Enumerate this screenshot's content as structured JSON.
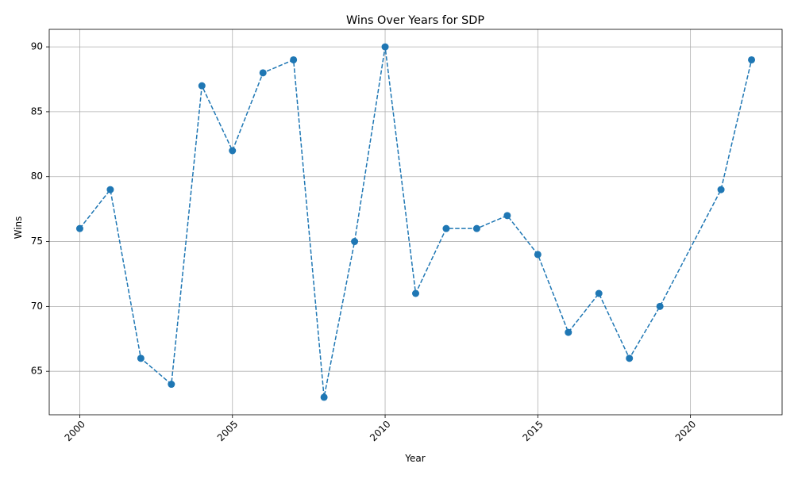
{
  "chart_data": {
    "type": "line",
    "title": "Wins Over Years for SDP",
    "xlabel": "Year",
    "ylabel": "Wins",
    "xlim": [
      1999,
      2023
    ],
    "ylim": [
      61.65,
      91.35
    ],
    "x_ticks": [
      2000,
      2005,
      2010,
      2015,
      2020
    ],
    "y_ticks": [
      65,
      70,
      75,
      80,
      85,
      90
    ],
    "x_tick_labels": [
      "2000",
      "2005",
      "2010",
      "2015",
      "2020"
    ],
    "y_tick_labels": [
      "65",
      "70",
      "75",
      "80",
      "85",
      "90"
    ],
    "x_tick_rotation": 45,
    "grid": true,
    "series": [
      {
        "color": "#1f77b4",
        "line_style": "dashed",
        "marker": "circle",
        "x": [
          2000,
          2001,
          2002,
          2003,
          2004,
          2005,
          2006,
          2007,
          2008,
          2009,
          2010,
          2011,
          2012,
          2013,
          2014,
          2015,
          2016,
          2017,
          2018,
          2019,
          2021,
          2022
        ],
        "values": [
          76,
          79,
          66,
          64,
          87,
          82,
          88,
          89,
          63,
          75,
          90,
          71,
          76,
          76,
          77,
          74,
          68,
          71,
          66,
          70,
          79,
          89
        ]
      }
    ]
  }
}
